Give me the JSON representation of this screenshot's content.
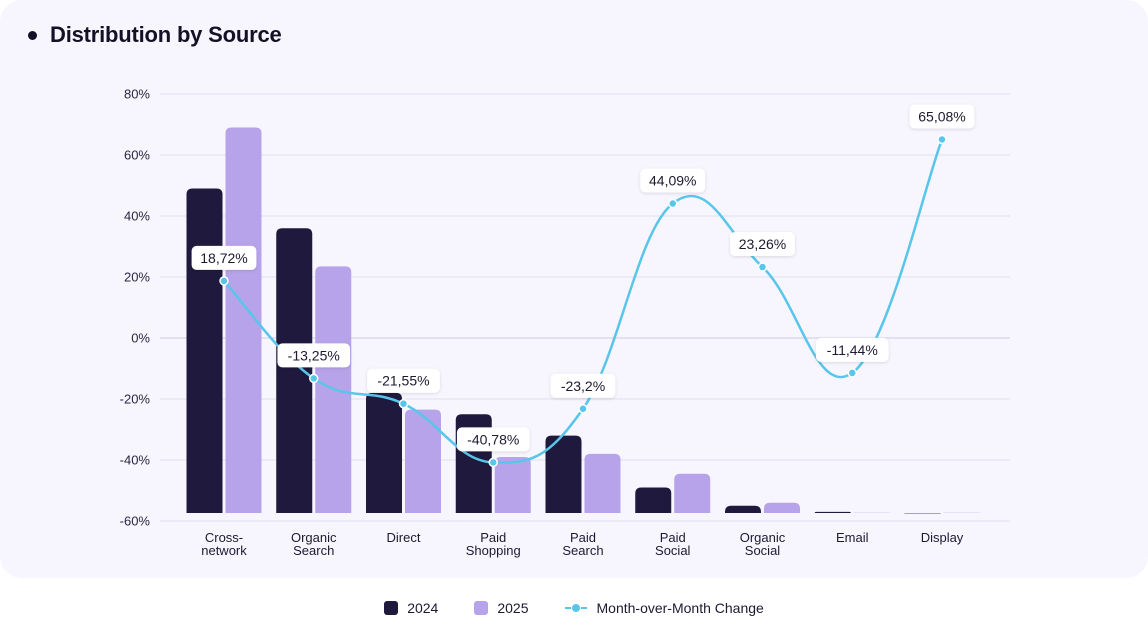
{
  "title": "Distribution by Source",
  "legend": {
    "series_2024": "2024",
    "series_2025": "2025",
    "change": "Month-over-Month Change"
  },
  "colors": {
    "series_2024": "#1f1a3d",
    "series_2025": "#b7a3ea",
    "change": "#58c6ea"
  },
  "chart_data": {
    "type": "bar",
    "categories": [
      [
        "Cross-",
        "network"
      ],
      [
        "Organic",
        "Search"
      ],
      [
        "Direct"
      ],
      [
        "Paid",
        "Shopping"
      ],
      [
        "Paid",
        "Search"
      ],
      [
        "Paid",
        "Social"
      ],
      [
        "Organic",
        "Social"
      ],
      [
        "Email"
      ],
      [
        "Display"
      ]
    ],
    "ylim": [
      -60,
      80
    ],
    "yticks": [
      "80%",
      "60%",
      "40%",
      "20%",
      "0%",
      "-20%",
      "-40%",
      "-60%"
    ],
    "ytick_values": [
      80,
      60,
      40,
      20,
      0,
      -20,
      -40,
      -60
    ],
    "series": [
      {
        "name": "2024",
        "values": [
          49,
          36,
          -18,
          -25,
          -32,
          -49,
          -55,
          -57,
          -57.5
        ]
      },
      {
        "name": "2025",
        "values": [
          69,
          23.5,
          -23.5,
          -39,
          -38,
          -44.5,
          -54,
          -57.3,
          -57.3
        ]
      }
    ],
    "line": {
      "name": "Month-over-Month Change",
      "values": [
        18.72,
        -13.25,
        -21.55,
        -40.78,
        -23.2,
        44.09,
        23.26,
        -11.44,
        65.08
      ],
      "labels": [
        "18,72%",
        "-13,25%",
        "-21,55%",
        "-40,78%",
        "-23,2%",
        "44,09%",
        "23,26%",
        "-11,44%",
        "65,08%"
      ]
    },
    "grid": true,
    "legend_position": "bottom"
  }
}
